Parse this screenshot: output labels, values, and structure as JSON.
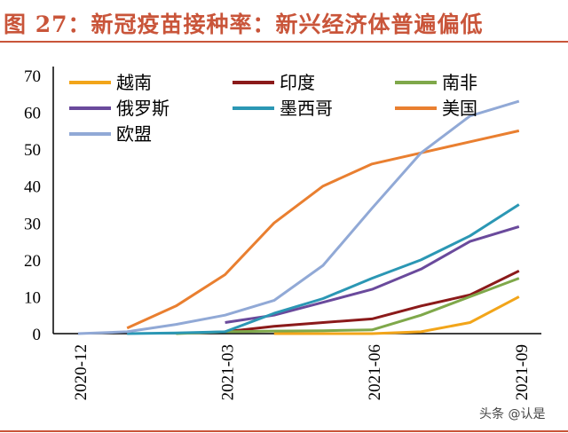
{
  "title": "图 27：新冠疫苗接种率：新兴经济体普遍偏低",
  "watermark": "头条 @认是",
  "chart_data": {
    "type": "line",
    "title": "图 27：新冠疫苗接种率：新兴经济体普遍偏低",
    "xlabel": "",
    "ylabel": "",
    "ylim": [
      0,
      70
    ],
    "yticks": [
      "0",
      "10",
      "20",
      "30",
      "40",
      "50",
      "60",
      "70"
    ],
    "x": [
      "2020-12",
      "2021-01",
      "2021-02",
      "2021-03",
      "2021-04",
      "2021-05",
      "2021-06",
      "2021-07",
      "2021-08",
      "2021-09"
    ],
    "xtick_labels": [
      "2020-12",
      "2021-03",
      "2021-06",
      "2021-09"
    ],
    "grid": false,
    "legend": "top",
    "series": [
      {
        "name": "越南",
        "color": "#f2a51a",
        "values": [
          null,
          null,
          null,
          null,
          0,
          0,
          0,
          0.5,
          3,
          10
        ]
      },
      {
        "name": "印度",
        "color": "#8b1a1a",
        "values": [
          null,
          null,
          null,
          0.5,
          2,
          3,
          4,
          7.5,
          10.5,
          17
        ]
      },
      {
        "name": "南非",
        "color": "#7fa84a",
        "values": [
          null,
          null,
          0,
          0.5,
          0.7,
          0.8,
          1,
          5,
          10,
          15
        ]
      },
      {
        "name": "俄罗斯",
        "color": "#6a4a9c",
        "values": [
          null,
          null,
          null,
          3,
          5,
          8.5,
          12,
          17.5,
          25,
          29
        ]
      },
      {
        "name": "墨西哥",
        "color": "#2b97b4",
        "values": [
          null,
          0,
          0.2,
          0.5,
          5.5,
          9.5,
          15,
          20,
          26.5,
          35
        ]
      },
      {
        "name": "美国",
        "color": "#e97f30",
        "values": [
          null,
          1.5,
          7.5,
          16,
          30,
          40,
          46,
          49,
          52,
          55
        ]
      },
      {
        "name": "欧盟",
        "color": "#91a9d6",
        "values": [
          0,
          0.5,
          2.5,
          5,
          9,
          18.5,
          34,
          49,
          59,
          63
        ]
      }
    ]
  }
}
